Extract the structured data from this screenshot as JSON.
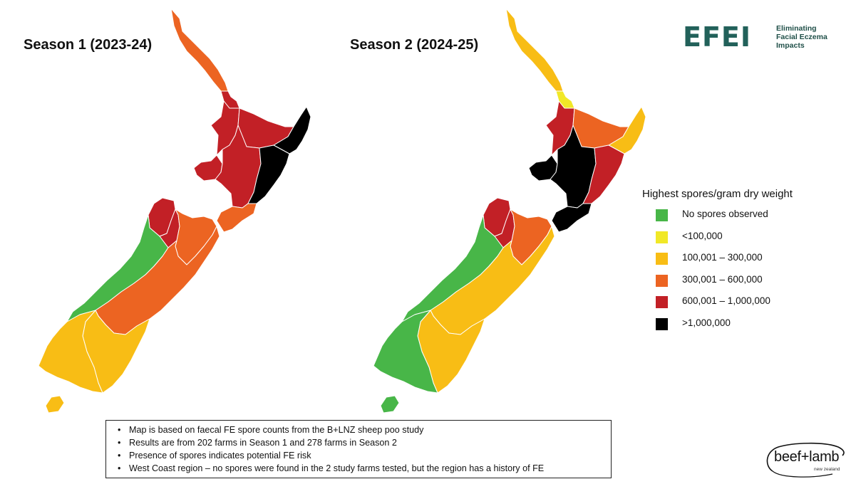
{
  "legend": {
    "title": "Highest spores/gram dry weight",
    "categories": [
      {
        "label": "No spores observed",
        "color": "#48b648"
      },
      {
        "label": "<100,000",
        "color": "#f1e827"
      },
      {
        "label": "100,001 – 300,000",
        "color": "#f8bd15"
      },
      {
        "label": "300,001 – 600,000",
        "color": "#ec6422"
      },
      {
        "label": "600,001 – 1,000,000",
        "color": "#c22026"
      },
      {
        "label": ">1,000,000",
        "color": "#000000"
      }
    ]
  },
  "maps": [
    {
      "title": "Season 1 (2023-24)",
      "regions": [
        {
          "name": "Northland",
          "category": 3
        },
        {
          "name": "Auckland",
          "category": 4
        },
        {
          "name": "Waikato",
          "category": 4
        },
        {
          "name": "Bay of Plenty",
          "category": 4
        },
        {
          "name": "Gisborne",
          "category": 5
        },
        {
          "name": "Taranaki",
          "category": 4
        },
        {
          "name": "Manawatu-Whanganui",
          "category": 4
        },
        {
          "name": "Hawke's Bay",
          "category": 5
        },
        {
          "name": "Wellington",
          "category": 3
        },
        {
          "name": "Tasman",
          "category": 4
        },
        {
          "name": "Nelson",
          "category": 4
        },
        {
          "name": "Marlborough",
          "category": 3
        },
        {
          "name": "West Coast",
          "category": 0
        },
        {
          "name": "Canterbury",
          "category": 3
        },
        {
          "name": "Otago",
          "category": 2
        },
        {
          "name": "Southland",
          "category": 2
        },
        {
          "name": "Stewart Island",
          "category": 2
        }
      ]
    },
    {
      "title": "Season 2 (2024-25)",
      "regions": [
        {
          "name": "Northland",
          "category": 2
        },
        {
          "name": "Auckland",
          "category": 1
        },
        {
          "name": "Waikato",
          "category": 4
        },
        {
          "name": "Bay of Plenty",
          "category": 3
        },
        {
          "name": "Gisborne",
          "category": 2
        },
        {
          "name": "Taranaki",
          "category": 5
        },
        {
          "name": "Manawatu-Whanganui",
          "category": 5
        },
        {
          "name": "Hawke's Bay",
          "category": 4
        },
        {
          "name": "Wellington",
          "category": 5
        },
        {
          "name": "Tasman",
          "category": 4
        },
        {
          "name": "Nelson",
          "category": 4
        },
        {
          "name": "Marlborough",
          "category": 3
        },
        {
          "name": "West Coast",
          "category": 0
        },
        {
          "name": "Canterbury",
          "category": 2
        },
        {
          "name": "Otago",
          "category": 2
        },
        {
          "name": "Southland",
          "category": 0
        },
        {
          "name": "Stewart Island",
          "category": 0
        }
      ]
    }
  ],
  "notes": [
    "Map is based on faecal FE spore counts from the B+LNZ sheep poo study",
    "Results are from 202 farms in Season 1 and 278 farms in Season 2",
    "Presence of spores indicates potential FE risk",
    "West Coast region – no spores were found in the 2 study farms tested, but the region has a history of FE"
  ],
  "logos": {
    "efei": {
      "mark": "EFEI",
      "tagline": [
        "Eliminating",
        "Facial Eczema",
        "Impacts"
      ],
      "color": "#22615a"
    },
    "beef_lamb": {
      "wordmark": "beef+lamb",
      "sub": "new zealand"
    }
  }
}
